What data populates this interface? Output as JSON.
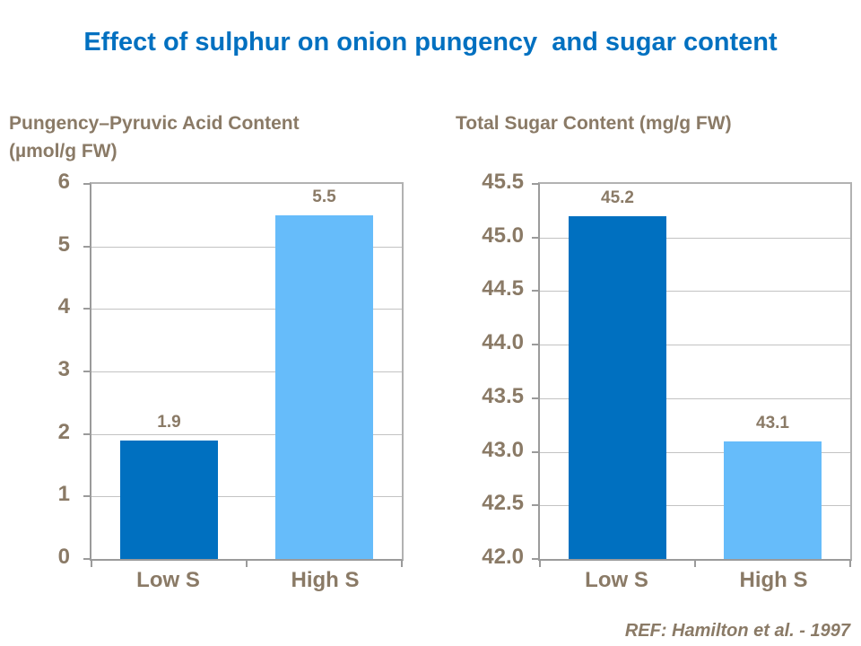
{
  "slide": {
    "title": "Effect of sulphur on onion pungency  and sugar content",
    "reference": "REF: Hamilton et al. - 1997"
  },
  "colors": {
    "title_blue": "#0070C0",
    "text_brown": "#8A7A66",
    "axis_gray": "#9B9B9B",
    "gridline_gray": "#C3C3C3",
    "bar_dark_blue": "#0070C0",
    "bar_light_blue": "#66BCFA"
  },
  "chart_data": [
    {
      "type": "bar",
      "title": "Pungency–Pyruvic Acid Content\n(µmol/g FW)",
      "categories": [
        "Low S",
        "High S"
      ],
      "values": [
        1.9,
        5.5
      ],
      "data_labels": [
        "1.9",
        "5.5"
      ],
      "bar_colors": [
        "#0070C0",
        "#66BCFA"
      ],
      "xlabel": "",
      "ylabel": "",
      "ylim": [
        0,
        6
      ],
      "ytick_labels": [
        "0",
        "1",
        "2",
        "3",
        "4",
        "5",
        "6"
      ],
      "grid": true,
      "legend": "none"
    },
    {
      "type": "bar",
      "title": "Total Sugar Content (mg/g FW)",
      "categories": [
        "Low S",
        "High S"
      ],
      "values": [
        45.2,
        43.1
      ],
      "data_labels": [
        "45.2",
        "43.1"
      ],
      "bar_colors": [
        "#0070C0",
        "#66BCFA"
      ],
      "xlabel": "",
      "ylabel": "",
      "ylim": [
        42.0,
        45.5
      ],
      "ytick_labels": [
        "42.0",
        "42.5",
        "43.0",
        "43.5",
        "44.0",
        "44.5",
        "45.0",
        "45.5"
      ],
      "grid": true,
      "legend": "none"
    }
  ]
}
